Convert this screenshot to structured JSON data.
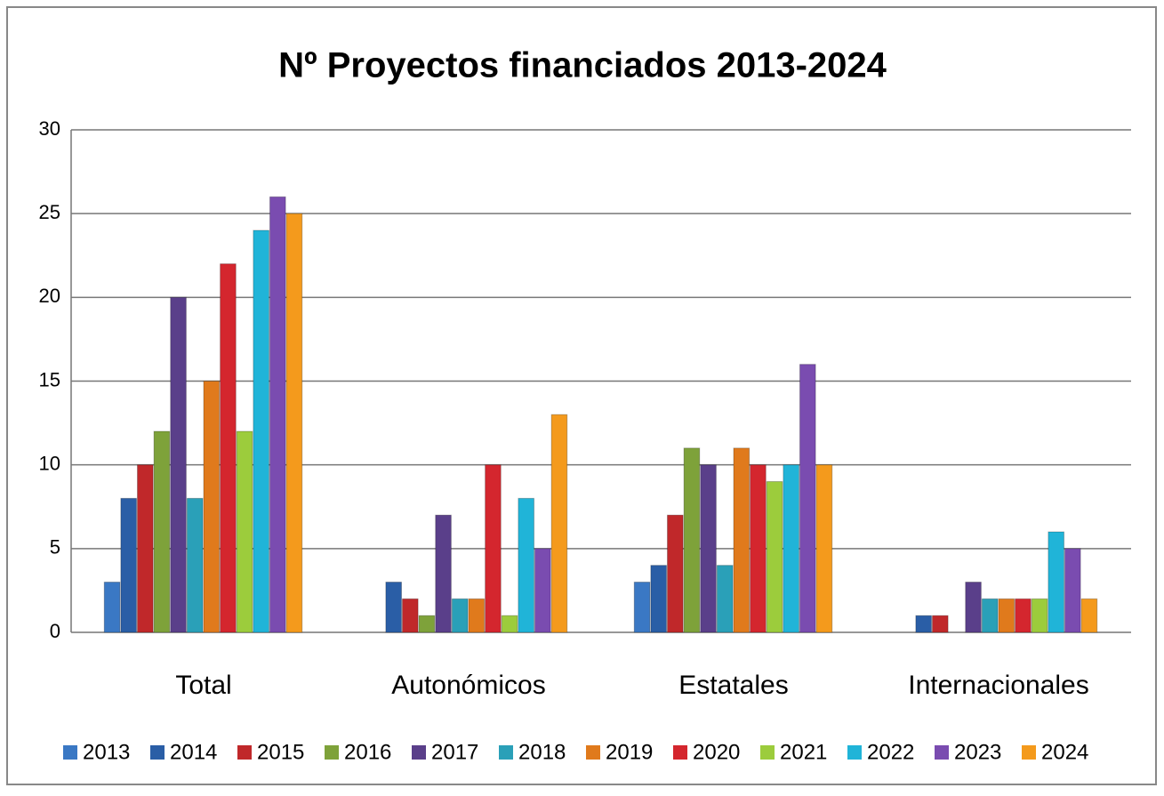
{
  "chart_data": {
    "type": "bar",
    "title": "Nº Proyectos financiados 2013-2024",
    "categories": [
      "Total",
      "Autonómicos",
      "Estatales",
      "Internacionales"
    ],
    "series": [
      {
        "name": "2013",
        "color": "#3a78c4",
        "values": [
          3,
          0,
          3,
          0
        ]
      },
      {
        "name": "2014",
        "color": "#2a5ea6",
        "values": [
          8,
          3,
          4,
          1
        ]
      },
      {
        "name": "2015",
        "color": "#c0282a",
        "values": [
          10,
          2,
          7,
          1
        ]
      },
      {
        "name": "2016",
        "color": "#7ea23a",
        "values": [
          12,
          1,
          11,
          0
        ]
      },
      {
        "name": "2017",
        "color": "#5a3f8a",
        "values": [
          20,
          7,
          10,
          3
        ]
      },
      {
        "name": "2018",
        "color": "#2aa0b8",
        "values": [
          8,
          2,
          4,
          2
        ]
      },
      {
        "name": "2019",
        "color": "#e07a1c",
        "values": [
          15,
          2,
          11,
          2
        ]
      },
      {
        "name": "2020",
        "color": "#d4262e",
        "values": [
          22,
          10,
          10,
          2
        ]
      },
      {
        "name": "2021",
        "color": "#9ccc3c",
        "values": [
          12,
          1,
          9,
          2
        ]
      },
      {
        "name": "2022",
        "color": "#20b4d8",
        "values": [
          24,
          8,
          10,
          6
        ]
      },
      {
        "name": "2023",
        "color": "#7a4cb0",
        "values": [
          26,
          5,
          16,
          5
        ]
      },
      {
        "name": "2024",
        "color": "#f49a1c",
        "values": [
          25,
          13,
          10,
          2
        ]
      }
    ],
    "ylim": [
      0,
      30
    ],
    "yticks": [
      0,
      5,
      10,
      15,
      20,
      25,
      30
    ],
    "grid": true,
    "legend": "bottom"
  }
}
